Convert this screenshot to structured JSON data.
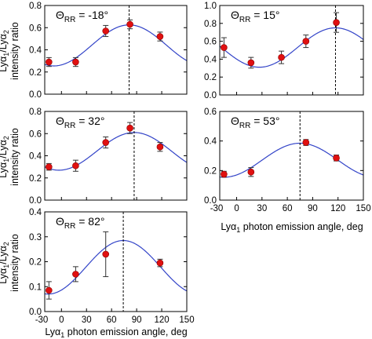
{
  "chart_data": [
    {
      "type": "scatter",
      "title": "Θ_RR = -18°",
      "title_main": "Θ",
      "title_sub": "RR",
      "title_value": " = -18°",
      "xlim": [
        -20,
        150
      ],
      "ylim": [
        0,
        0.8
      ],
      "xticks": [
        "-30",
        "0",
        "30",
        "60",
        "90",
        "120",
        "150"
      ],
      "yticks": [
        "0.0",
        "0.2",
        "0.4",
        "0.6",
        "0.8"
      ],
      "points": [
        {
          "x": -15,
          "y": 0.29,
          "err": 0.04
        },
        {
          "x": 17,
          "y": 0.29,
          "err": 0.04
        },
        {
          "x": 53,
          "y": 0.57,
          "err": 0.05
        },
        {
          "x": 82,
          "y": 0.63,
          "err": 0.04
        },
        {
          "x": 118,
          "y": 0.52,
          "err": 0.04
        }
      ],
      "curve": {
        "min": 0.255,
        "max": 0.625,
        "peak_x": 81
      },
      "vline_x": 81
    },
    {
      "type": "scatter",
      "title": "Θ_RR = 15°",
      "title_main": "Θ",
      "title_sub": "RR",
      "title_value": " = 15°",
      "xlim": [
        -20,
        150
      ],
      "ylim": [
        0,
        1.0
      ],
      "xticks": [
        "-30",
        "0",
        "30",
        "60",
        "90",
        "120",
        "150"
      ],
      "yticks": [
        "0.0",
        "0.2",
        "0.4",
        "0.6",
        "0.8",
        "1.0"
      ],
      "points": [
        {
          "x": -15,
          "y": 0.53,
          "err": 0.11
        },
        {
          "x": 17,
          "y": 0.36,
          "err": 0.06
        },
        {
          "x": 53,
          "y": 0.42,
          "err": 0.07
        },
        {
          "x": 82,
          "y": 0.6,
          "err": 0.07
        },
        {
          "x": 118,
          "y": 0.81,
          "err": 0.11
        }
      ],
      "curve": {
        "min": 0.31,
        "max": 0.75,
        "peak_x": 117
      },
      "vline_x": 117
    },
    {
      "type": "scatter",
      "title": "Θ_RR = 32°",
      "title_main": "Θ",
      "title_sub": "RR",
      "title_value": " = 32°",
      "xlim": [
        -20,
        150
      ],
      "ylim": [
        0,
        0.8
      ],
      "xticks": [
        "-30",
        "0",
        "30",
        "60",
        "90",
        "120",
        "150"
      ],
      "yticks": [
        "0.0",
        "0.2",
        "0.4",
        "0.6",
        "0.8"
      ],
      "points": [
        {
          "x": -15,
          "y": 0.3,
          "err": 0.03
        },
        {
          "x": 17,
          "y": 0.31,
          "err": 0.05
        },
        {
          "x": 53,
          "y": 0.52,
          "err": 0.05
        },
        {
          "x": 82,
          "y": 0.65,
          "err": 0.05
        },
        {
          "x": 118,
          "y": 0.48,
          "err": 0.04
        }
      ],
      "curve": {
        "min": 0.27,
        "max": 0.61,
        "peak_x": 87
      },
      "vline_x": 87
    },
    {
      "type": "scatter",
      "title": "Θ_RR = 53°",
      "title_main": "Θ",
      "title_sub": "RR",
      "title_value": " = 53°",
      "xlim": [
        -20,
        150
      ],
      "ylim": [
        0,
        0.6
      ],
      "xticks": [
        "-30",
        "0",
        "30",
        "60",
        "90",
        "120",
        "150"
      ],
      "yticks": [
        "0.0",
        "0.2",
        "0.4",
        "0.6"
      ],
      "points": [
        {
          "x": -15,
          "y": 0.175,
          "err": 0.02
        },
        {
          "x": 17,
          "y": 0.19,
          "err": 0.03
        },
        {
          "x": 82,
          "y": 0.39,
          "err": 0.02
        },
        {
          "x": 118,
          "y": 0.285,
          "err": 0.02
        }
      ],
      "curve": {
        "min": 0.155,
        "max": 0.385,
        "peak_x": 75
      },
      "vline_x": 75
    },
    {
      "type": "scatter",
      "title": "Θ_RR = 82°",
      "title_main": "Θ",
      "title_sub": "RR",
      "title_value": " = 82°",
      "xlim": [
        -20,
        150
      ],
      "ylim": [
        0,
        0.4
      ],
      "xticks": [
        "-30",
        "0",
        "30",
        "60",
        "90",
        "120",
        "150"
      ],
      "yticks": [
        "0.0",
        "0.1",
        "0.2",
        "0.3",
        "0.4"
      ],
      "points": [
        {
          "x": -15,
          "y": 0.085,
          "err": 0.035
        },
        {
          "x": 17,
          "y": 0.15,
          "err": 0.03
        },
        {
          "x": 53,
          "y": 0.23,
          "err": 0.09
        },
        {
          "x": 118,
          "y": 0.195,
          "err": 0.015
        }
      ],
      "curve": {
        "min": 0.07,
        "max": 0.285,
        "peak_x": 74
      },
      "vline_x": 74
    }
  ],
  "ylabel_line1_a": "Lyα",
  "ylabel_line1_sub1": "1",
  "ylabel_line1_b": "/Lyα",
  "ylabel_line1_sub2": "2",
  "ylabel_line2": "intensity ratio",
  "xlabel_a": "Lyα",
  "xlabel_sub": "1",
  "xlabel_b": " photon emission angle, deg"
}
